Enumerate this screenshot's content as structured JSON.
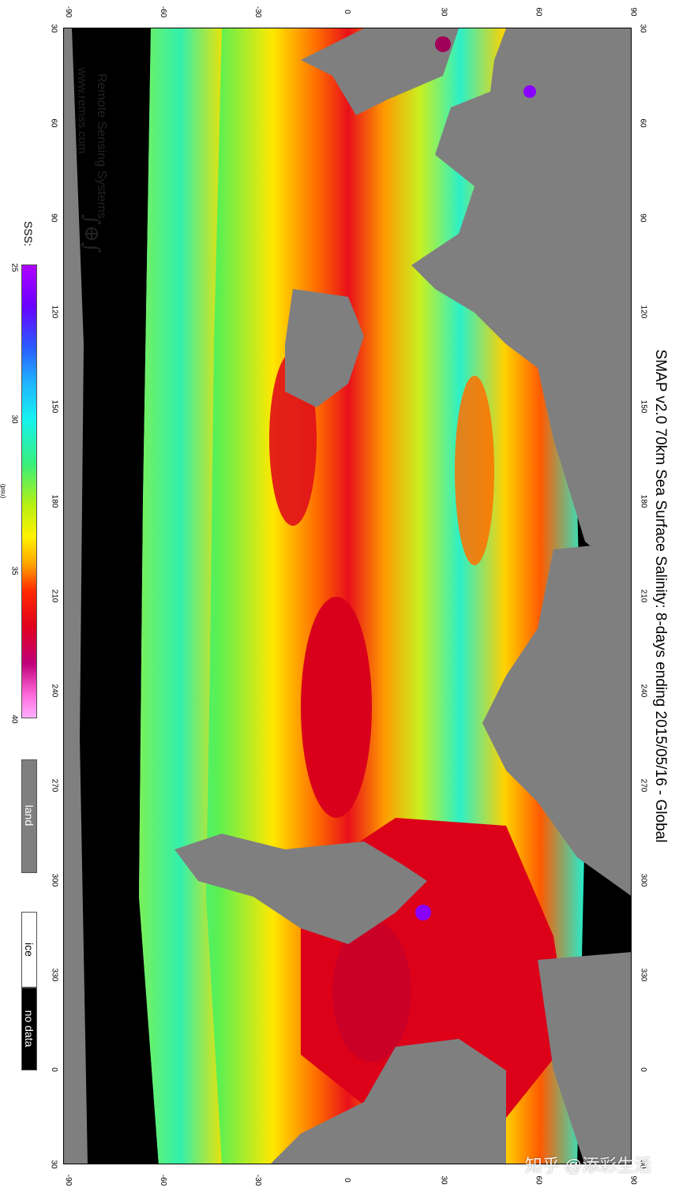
{
  "title": "SMAP  v2.0  70km Sea Surface Salinity: 8-days ending 2015/05/16 - Global",
  "credit": {
    "org": "Remote Sensing Systems",
    "url": "www.remss.com"
  },
  "legend": {
    "label": "SSS:",
    "unit": "(psu)",
    "ticks": [
      "25",
      "30",
      "35",
      "40"
    ],
    "scale_min": 25,
    "scale_max": 40,
    "swatches": {
      "land": "land",
      "ice": "ice",
      "no_data": "no data"
    }
  },
  "colors": {
    "land": "#7f7f7f",
    "no_data": "#000000",
    "ice": "#ffffff",
    "low_salinity": "#8a00ff",
    "high_salinity": "#e0001e"
  },
  "axes": {
    "latitude_ticks": [
      "-90",
      "-60",
      "-30",
      "0",
      "30",
      "60",
      "90"
    ],
    "longitude_ticks": [
      "30",
      "60",
      "90",
      "120",
      "150",
      "180",
      "210",
      "240",
      "270",
      "300",
      "330",
      "0",
      "30"
    ]
  },
  "watermark": "知乎 @添彩生活"
}
